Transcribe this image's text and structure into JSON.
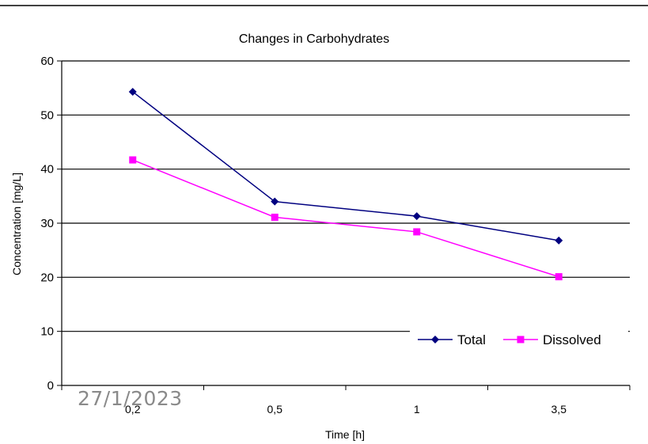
{
  "footer": {
    "date": "27/1/2023"
  },
  "chart_data": {
    "type": "line",
    "title": "Changes in Carbohydrates",
    "xlabel": "Time [h]",
    "ylabel": "Concentration [mg/L]",
    "categories": [
      "0,2",
      "0,5",
      "1",
      "3,5"
    ],
    "ylim": [
      0,
      60
    ],
    "yticks": [
      "0",
      "10",
      "20",
      "30",
      "40",
      "50",
      "60"
    ],
    "grid": "horizontal",
    "legend_position": "bottom-right",
    "series": [
      {
        "name": "Total",
        "values": [
          54.3,
          34.0,
          31.3,
          26.8
        ],
        "color": "#000080",
        "marker": "diamond"
      },
      {
        "name": "Dissolved",
        "values": [
          41.7,
          31.1,
          28.4,
          20.1
        ],
        "color": "#ff00ff",
        "marker": "square"
      }
    ]
  }
}
